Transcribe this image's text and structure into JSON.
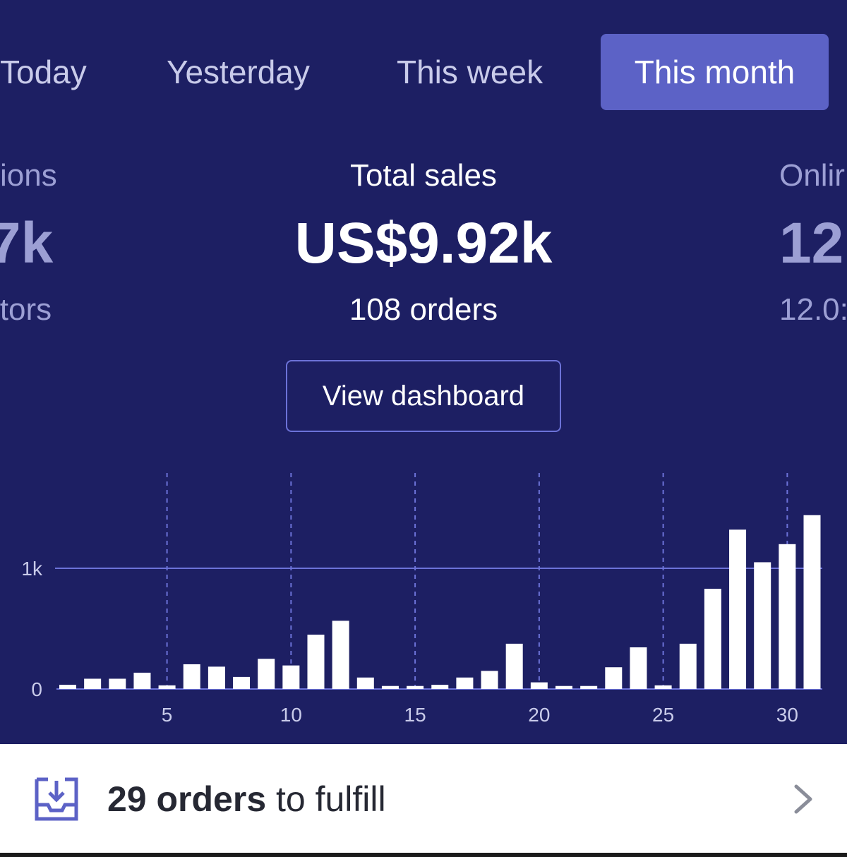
{
  "tabs": {
    "today": "Today",
    "yesterday": "Yesterday",
    "this_week": "This week",
    "this_month": "This month",
    "active": "This month"
  },
  "metrics": {
    "left": {
      "label": "sions",
      "value": "7k",
      "sub": "itors"
    },
    "center": {
      "label": "Total sales",
      "value": "US$9.92k",
      "sub": "108 orders"
    },
    "right": {
      "label": "Onlir",
      "value": "12",
      "sub": "12.0:"
    }
  },
  "dashboard_button": "View dashboard",
  "chart_data": {
    "type": "bar",
    "x": [
      1,
      2,
      3,
      4,
      5,
      6,
      7,
      8,
      9,
      10,
      11,
      12,
      13,
      14,
      15,
      16,
      17,
      18,
      19,
      20,
      21,
      22,
      23,
      24,
      25,
      26,
      27,
      28,
      29,
      30,
      31
    ],
    "values": [
      35,
      85,
      85,
      135,
      30,
      205,
      185,
      100,
      250,
      195,
      450,
      565,
      95,
      25,
      25,
      35,
      95,
      150,
      375,
      55,
      25,
      25,
      180,
      345,
      30,
      375,
      830,
      1320,
      1050,
      1200,
      1440
    ],
    "x_ticks": [
      "5",
      "10",
      "15",
      "20",
      "25",
      "30"
    ],
    "y_ticks": [
      "0",
      "1k"
    ],
    "ylim": [
      0,
      1800
    ],
    "reference_line": 1000,
    "grid": "vertical dashed at 5,10,15,20,25,30",
    "colors": {
      "bars": "#ffffff",
      "baseline": "#6c72d8",
      "grid": "#6c72d8"
    }
  },
  "footer": {
    "icon": "inbox-download-icon",
    "count_text": "29 orders",
    "rest_text": " to fulfill",
    "chevron": "chevron-right-icon"
  },
  "colors": {
    "background": "#1d1f63",
    "active_tab": "#5c62c6",
    "footer_bg": "#ffffff"
  }
}
